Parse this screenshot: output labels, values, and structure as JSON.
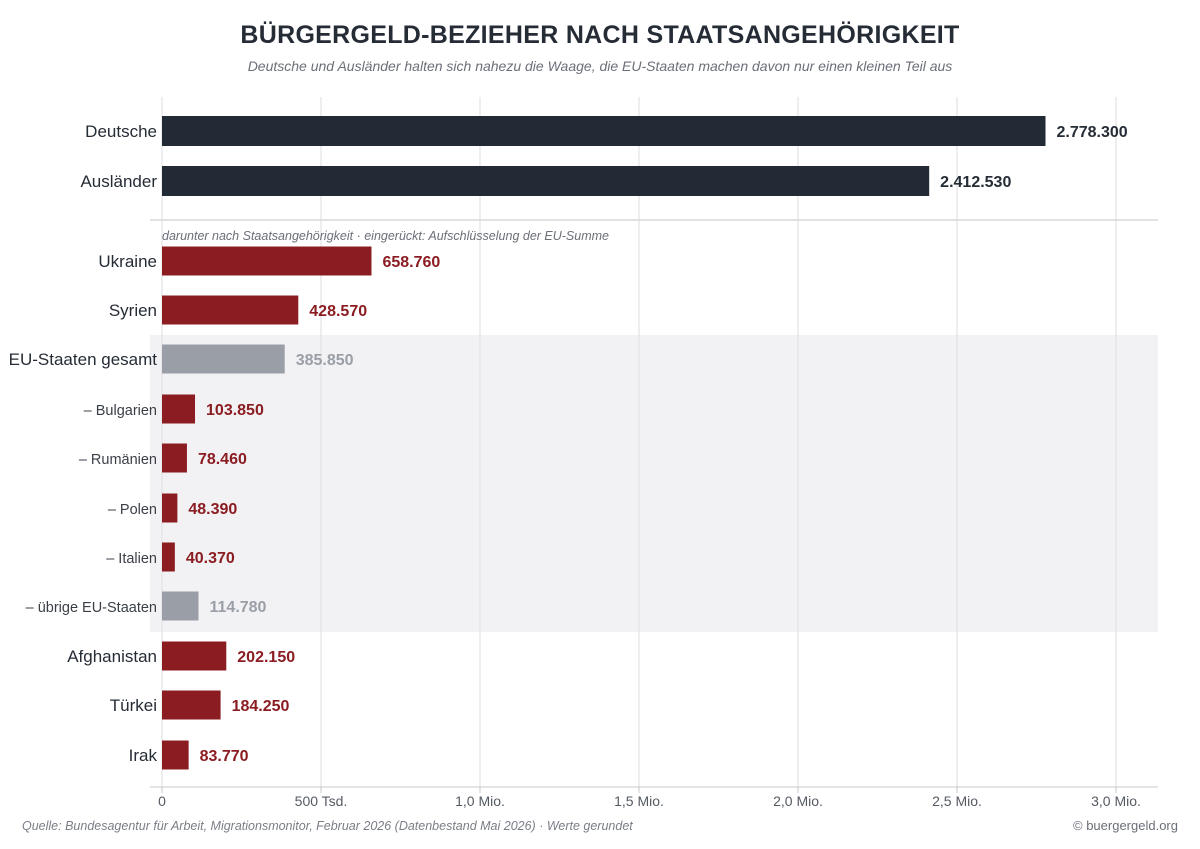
{
  "colors": {
    "dark": "#222a35",
    "red": "#8b1d22",
    "gray": "#9a9ea6",
    "band": "#f2f2f4",
    "grid": "#e3e3e6"
  },
  "chart_data": {
    "type": "bar",
    "orientation": "horizontal",
    "title": "BÜRGERGELD-BEZIEHER NACH STAATSANGEHÖRIGKEIT",
    "subtitle": "Deutsche und Ausländer halten sich nahezu die Waage, die EU-Staaten machen davon nur einen kleinen Teil aus",
    "xlim": [
      0,
      3000000
    ],
    "ticks": [
      {
        "value": 0,
        "label": "0"
      },
      {
        "value": 500000,
        "label": "500 Tsd."
      },
      {
        "value": 1000000,
        "label": "1,0 Mio."
      },
      {
        "value": 1500000,
        "label": "1,5 Mio."
      },
      {
        "value": 2000000,
        "label": "2,0 Mio."
      },
      {
        "value": 2500000,
        "label": "2,5 Mio."
      },
      {
        "value": 3000000,
        "label": "3,0 Mio."
      }
    ],
    "grid": true,
    "note": "darunter nach Staatsangehörigkeit  ·  eingerückt: Aufschlüsselung der EU-Summe",
    "bars": [
      {
        "label": "Deutsche",
        "value": 2778300,
        "value_label": "2.778.300",
        "color": "dark",
        "indent": false
      },
      {
        "label": "Ausländer",
        "value": 2412530,
        "value_label": "2.412.530",
        "color": "dark",
        "indent": false
      },
      {
        "label": "Ukraine",
        "value": 658760,
        "value_label": "658.760",
        "color": "red",
        "indent": false
      },
      {
        "label": "Syrien",
        "value": 428570,
        "value_label": "428.570",
        "color": "red",
        "indent": false
      },
      {
        "label": "EU-Staaten gesamt",
        "value": 385850,
        "value_label": "385.850",
        "color": "gray",
        "indent": false
      },
      {
        "label": "– Bulgarien",
        "value": 103850,
        "value_label": "103.850",
        "color": "red",
        "indent": true
      },
      {
        "label": "– Rumänien",
        "value": 78460,
        "value_label": "78.460",
        "color": "red",
        "indent": true
      },
      {
        "label": "– Polen",
        "value": 48390,
        "value_label": "48.390",
        "color": "red",
        "indent": true
      },
      {
        "label": "– Italien",
        "value": 40370,
        "value_label": "40.370",
        "color": "red",
        "indent": true
      },
      {
        "label": "– übrige EU-Staaten",
        "value": 114780,
        "value_label": "114.780",
        "color": "gray",
        "indent": true
      },
      {
        "label": "Afghanistan",
        "value": 202150,
        "value_label": "202.150",
        "color": "red",
        "indent": false
      },
      {
        "label": "Türkei",
        "value": 184250,
        "value_label": "184.250",
        "color": "red",
        "indent": false
      },
      {
        "label": "Irak",
        "value": 83770,
        "value_label": "83.770",
        "color": "red",
        "indent": false
      }
    ],
    "source": "Quelle: Bundesagentur für Arbeit, Migrationsmonitor, Februar 2026 (Datenbestand Mai 2026)  ·  Werte gerundet",
    "copyright": "© buergergeld.org"
  }
}
